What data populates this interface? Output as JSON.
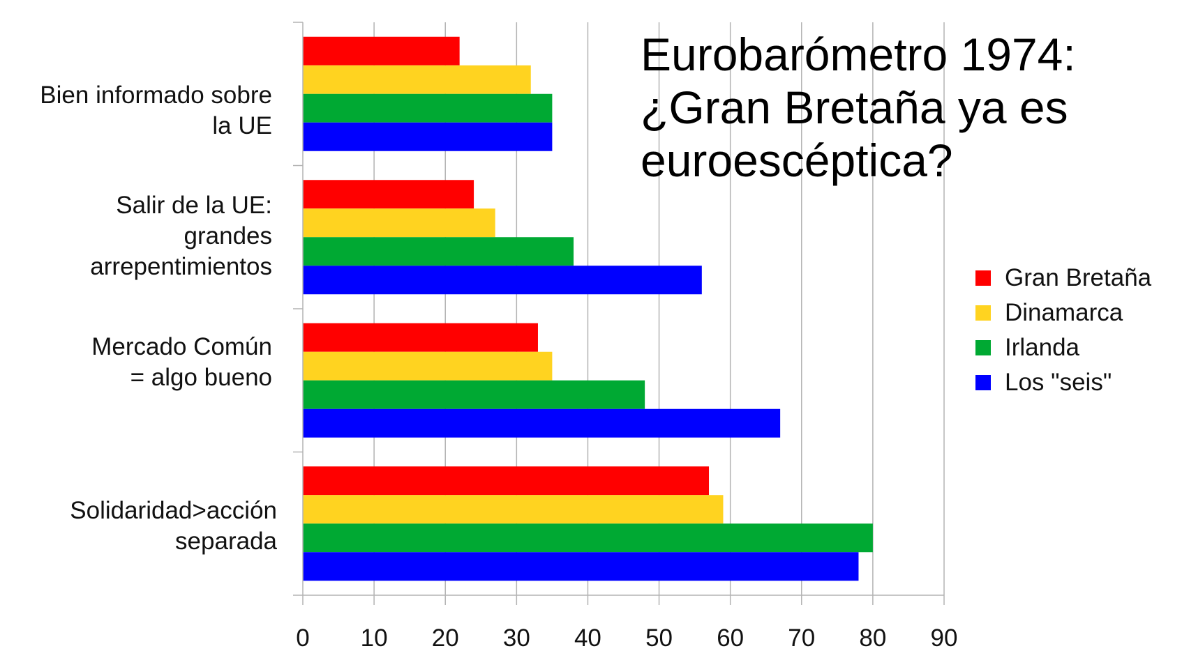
{
  "chart_data": {
    "type": "bar",
    "orientation": "horizontal",
    "title": "Eurobarómetro 1974:\n¿Gran Bretaña ya es\neuroescéptica?",
    "categories": [
      "Bien informado sobre\nla UE",
      "Salir de la UE:\ngrandes\narrepentimientos",
      "Mercado Común\n= algo bueno",
      "Solidaridad>acción\nseparada"
    ],
    "series": [
      {
        "name": "Gran Bretaña",
        "color": "#ff0000",
        "values": [
          22,
          24,
          33,
          57
        ]
      },
      {
        "name": "Dinamarca",
        "color": "#ffd320",
        "values": [
          32,
          27,
          35,
          59
        ]
      },
      {
        "name": "Irlanda",
        "color": "#00a933",
        "values": [
          35,
          38,
          48,
          80
        ]
      },
      {
        "name": "Los \"seis\"",
        "color": "#0000ff",
        "values": [
          35,
          56,
          67,
          78
        ]
      }
    ],
    "xlim": [
      0,
      90
    ],
    "xticks": [
      "0",
      "10",
      "20",
      "30",
      "40",
      "50",
      "60",
      "70",
      "80",
      "90"
    ],
    "grid": true,
    "legend_position": "right"
  }
}
